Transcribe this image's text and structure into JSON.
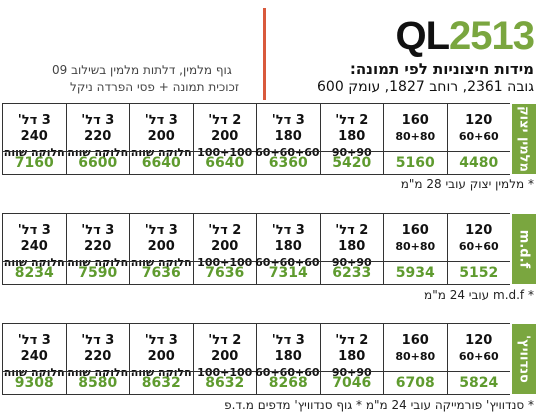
{
  "header": {
    "model_prefix": "QL",
    "model_number": "2513",
    "dimensions_title": "מידות חיצוניות לפי תמונה:",
    "dimensions": "גובה 2361, רוחב 1827, עומק 600",
    "description": [
      "גוף מלמין, דלתות מלמין בשילוב 09",
      "זכוכית תמונה + פסי הפרדה ניקל"
    ]
  },
  "columns": [
    {
      "size": "120",
      "split": "60+60"
    },
    {
      "size": "160",
      "split": "80+80"
    },
    {
      "size": "2 דל' 180",
      "split": "90+90"
    },
    {
      "size": "3 דל' 180",
      "split": "60+60+60"
    },
    {
      "size": "2 דל' 200",
      "split": "100+100"
    },
    {
      "size": "3 דל' 200",
      "split": "חלוקה שווה"
    },
    {
      "size": "3 דל' 220",
      "split": "חלוקה שווה"
    },
    {
      "size": "3 דל' 240",
      "split": "חלוקה שווה"
    }
  ],
  "tables": [
    {
      "material": "מלמין יצוק",
      "prices": [
        4480,
        5160,
        5420,
        6360,
        6640,
        6640,
        6600,
        7160
      ],
      "note": "* מלמין יצוק עובי 28 מ\"מ"
    },
    {
      "material": "m.d.f",
      "prices": [
        5152,
        5934,
        6233,
        7314,
        7636,
        7636,
        7590,
        8234
      ],
      "note": "* m.d.f עובי 24 מ\"מ"
    },
    {
      "material": "סנדוויץ'",
      "prices": [
        5824,
        6708,
        7046,
        8268,
        8632,
        8632,
        8580,
        9308
      ],
      "note": "* סנדוויץ' פורמייקה עובי 24 מ\"מ  * גוף סנדוויץ' מדפים מ.ד.פ"
    }
  ]
}
